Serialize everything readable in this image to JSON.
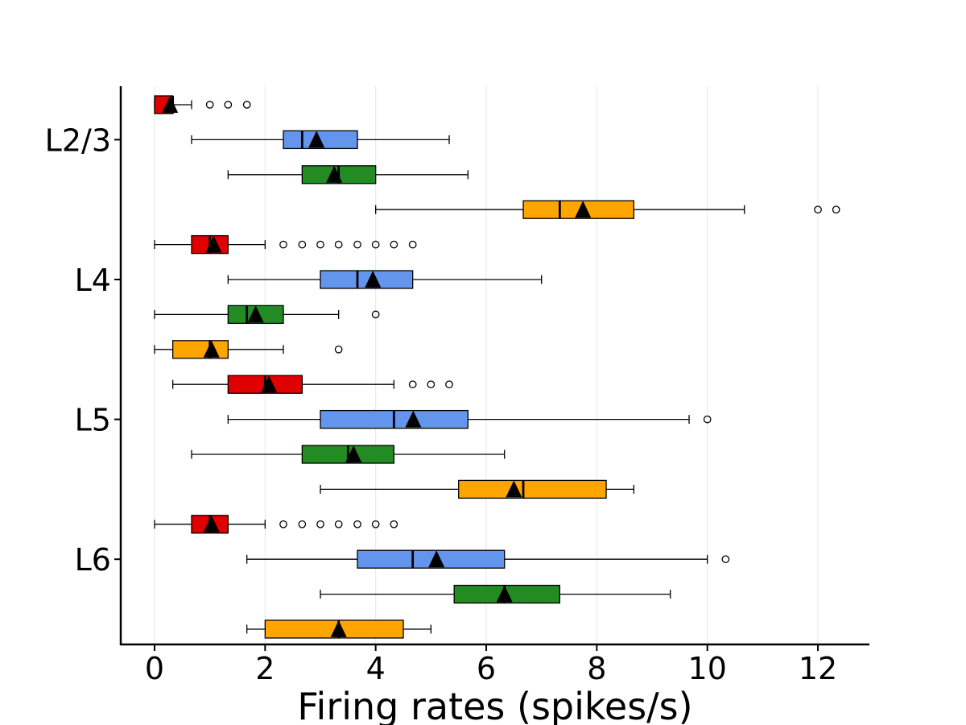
{
  "chart_data": {
    "type": "boxplot",
    "orientation": "horizontal",
    "xlabel": "Firing rates (spikes/s)",
    "ylabel": "",
    "xlim": [
      -0.6,
      12.95
    ],
    "xticks": [
      0,
      2,
      4,
      6,
      8,
      10,
      12
    ],
    "grid": "vertical",
    "groups": [
      "L2/3",
      "L4",
      "L5",
      "L6"
    ],
    "colors": [
      "#e00000",
      "#6495ed",
      "#228b22",
      "#ffa500"
    ],
    "boxes": [
      {
        "group": "L2/3",
        "color_index": 0,
        "whislo": 0.0,
        "q1": 0.0,
        "med": 0.33,
        "q3": 0.33,
        "whishi": 0.67,
        "mean": 0.28,
        "fliers": [
          1.0,
          1.33,
          1.67
        ]
      },
      {
        "group": "L2/3",
        "color_index": 1,
        "whislo": 0.67,
        "q1": 2.33,
        "med": 2.67,
        "q3": 3.67,
        "whishi": 5.33,
        "mean": 2.93,
        "fliers": []
      },
      {
        "group": "L2/3",
        "color_index": 2,
        "whislo": 1.33,
        "q1": 2.67,
        "med": 3.33,
        "q3": 4.0,
        "whishi": 5.67,
        "mean": 3.25,
        "fliers": []
      },
      {
        "group": "L2/3",
        "color_index": 3,
        "whislo": 4.0,
        "q1": 6.67,
        "med": 7.33,
        "q3": 8.67,
        "whishi": 10.67,
        "mean": 7.75,
        "fliers": [
          12.0,
          12.33
        ]
      },
      {
        "group": "L4",
        "color_index": 0,
        "whislo": 0.0,
        "q1": 0.67,
        "med": 1.0,
        "q3": 1.33,
        "whishi": 2.0,
        "mean": 1.07,
        "fliers": [
          2.33,
          2.67,
          3.0,
          3.33,
          3.67,
          4.0,
          4.33,
          4.67
        ]
      },
      {
        "group": "L4",
        "color_index": 1,
        "whislo": 1.33,
        "q1": 3.0,
        "med": 3.67,
        "q3": 4.67,
        "whishi": 7.0,
        "mean": 3.95,
        "fliers": []
      },
      {
        "group": "L4",
        "color_index": 2,
        "whislo": 0.0,
        "q1": 1.33,
        "med": 1.67,
        "q3": 2.33,
        "whishi": 3.33,
        "mean": 1.83,
        "fliers": [
          4.0
        ]
      },
      {
        "group": "L4",
        "color_index": 3,
        "whislo": 0.0,
        "q1": 0.33,
        "med": 1.0,
        "q3": 1.33,
        "whishi": 2.33,
        "mean": 1.03,
        "fliers": [
          3.33
        ]
      },
      {
        "group": "L5",
        "color_index": 0,
        "whislo": 0.33,
        "q1": 1.33,
        "med": 2.0,
        "q3": 2.67,
        "whishi": 4.33,
        "mean": 2.07,
        "fliers": [
          4.67,
          5.0,
          5.33
        ]
      },
      {
        "group": "L5",
        "color_index": 1,
        "whislo": 1.33,
        "q1": 3.0,
        "med": 4.33,
        "q3": 5.67,
        "whishi": 9.67,
        "mean": 4.68,
        "fliers": [
          10.0
        ]
      },
      {
        "group": "L5",
        "color_index": 2,
        "whislo": 0.67,
        "q1": 2.67,
        "med": 3.5,
        "q3": 4.33,
        "whishi": 6.33,
        "mean": 3.6,
        "fliers": []
      },
      {
        "group": "L5",
        "color_index": 3,
        "whislo": 3.0,
        "q1": 5.5,
        "med": 6.67,
        "q3": 8.17,
        "whishi": 8.67,
        "mean": 6.5,
        "fliers": []
      },
      {
        "group": "L6",
        "color_index": 0,
        "whislo": 0.0,
        "q1": 0.67,
        "med": 1.0,
        "q3": 1.33,
        "whishi": 2.0,
        "mean": 1.03,
        "fliers": [
          2.33,
          2.67,
          3.0,
          3.33,
          3.67,
          4.0,
          4.33
        ]
      },
      {
        "group": "L6",
        "color_index": 1,
        "whislo": 1.67,
        "q1": 3.67,
        "med": 4.67,
        "q3": 6.33,
        "whishi": 10.0,
        "mean": 5.1,
        "fliers": [
          10.33
        ]
      },
      {
        "group": "L6",
        "color_index": 2,
        "whislo": 3.0,
        "q1": 5.42,
        "med": 6.33,
        "q3": 7.33,
        "whishi": 9.33,
        "mean": 6.33,
        "fliers": []
      },
      {
        "group": "L6",
        "color_index": 3,
        "whislo": 1.67,
        "q1": 2.0,
        "med": 3.33,
        "q3": 4.5,
        "whishi": 5.0,
        "mean": 3.33,
        "fliers": []
      }
    ]
  }
}
